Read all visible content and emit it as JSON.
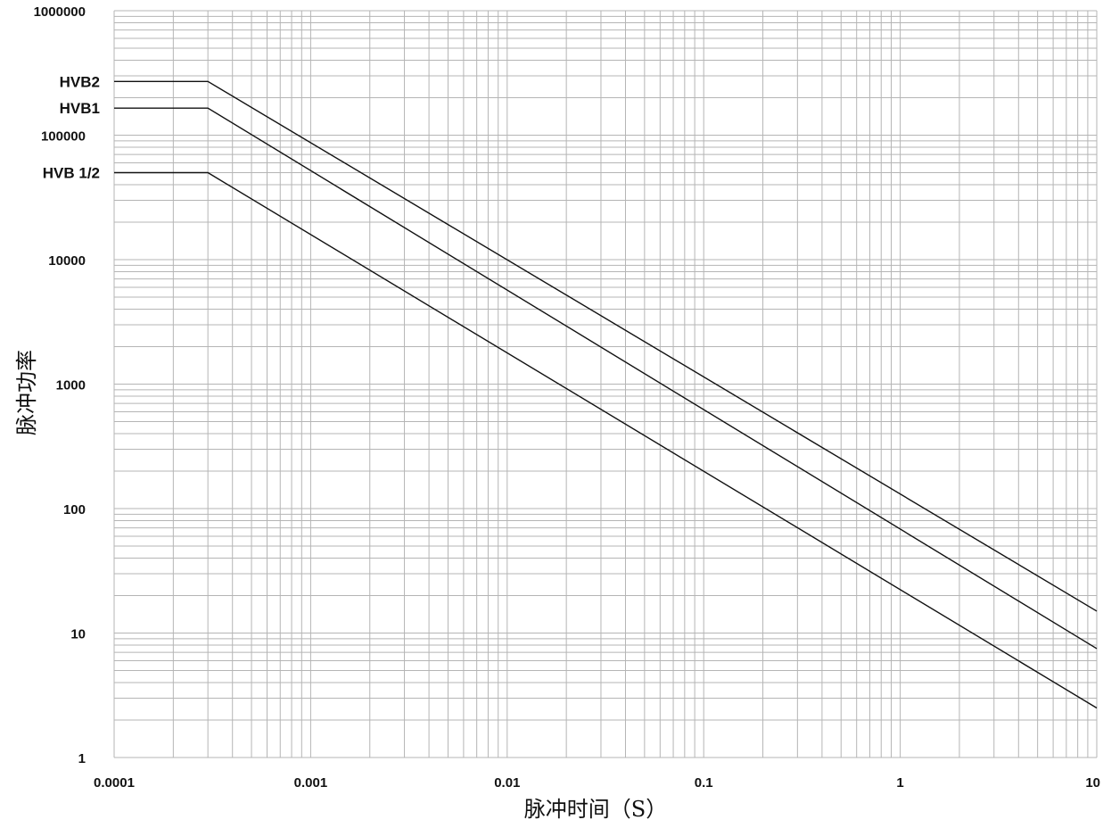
{
  "chart_data": {
    "type": "line",
    "title": "",
    "xlabel": "脉冲时间（S）",
    "ylabel": "脉冲功率",
    "x_scale": "log",
    "y_scale": "log",
    "xlim": [
      0.0001,
      10
    ],
    "ylim": [
      1,
      1000000
    ],
    "x_ticks": [
      "0.0001",
      "0.001",
      "0.01",
      "0.1",
      "1",
      "10"
    ],
    "y_ticks": [
      "1",
      "10",
      "100",
      "1000",
      "10000",
      "100000",
      "1000000"
    ],
    "grid": true,
    "series": [
      {
        "name": "HVB2",
        "x": [
          0.0001,
          0.0003,
          10
        ],
        "y": [
          270000,
          270000,
          15
        ]
      },
      {
        "name": "HVB1",
        "x": [
          0.0001,
          0.0003,
          10
        ],
        "y": [
          165000,
          165000,
          7.5
        ]
      },
      {
        "name": "HVB 1/2",
        "x": [
          0.0001,
          0.0003,
          10
        ],
        "y": [
          50000,
          50000,
          2.5
        ]
      }
    ],
    "colors": {
      "line": "#111111",
      "grid": "#b5b5b5"
    }
  }
}
